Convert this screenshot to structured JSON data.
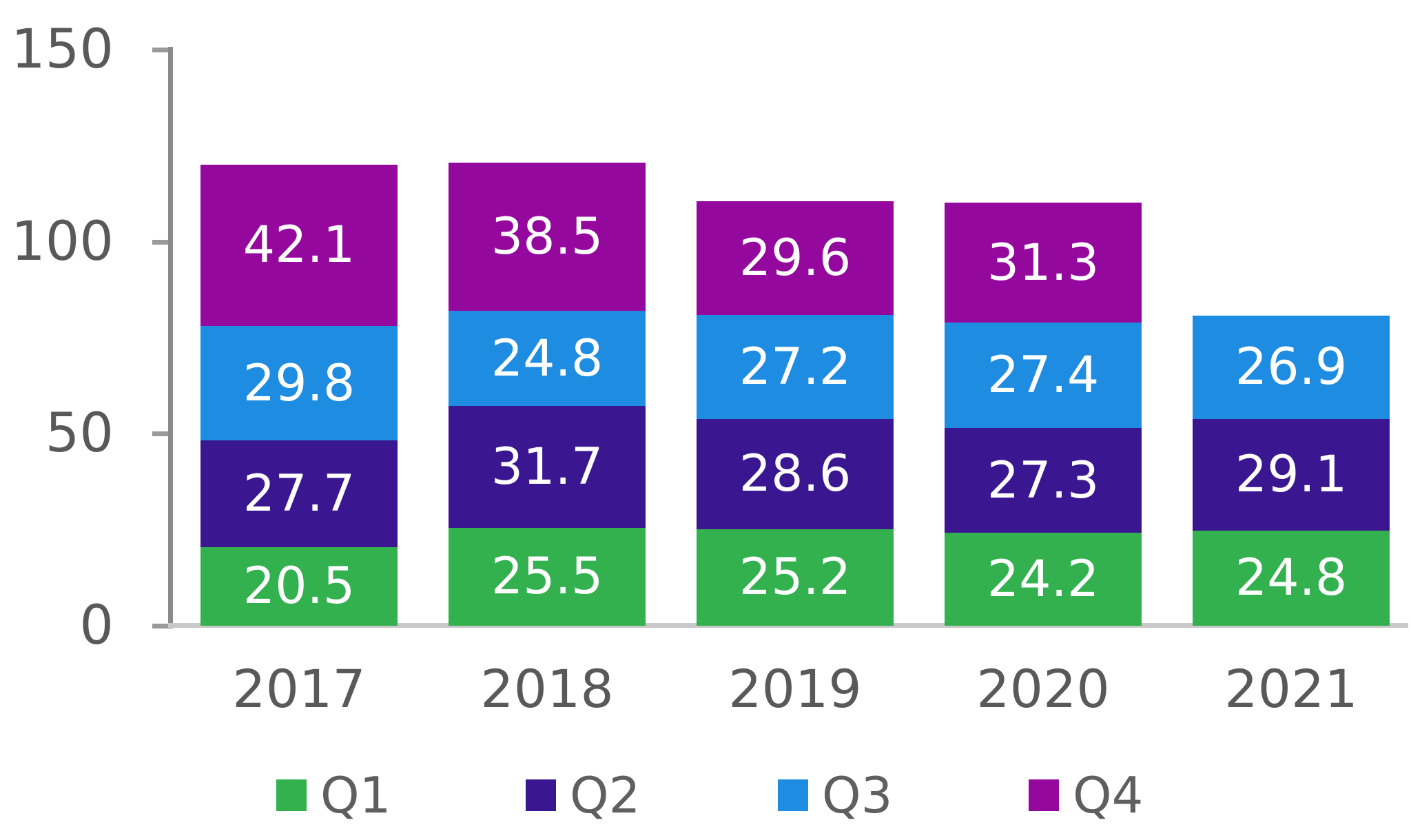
{
  "chart_data": {
    "type": "bar",
    "stacked": true,
    "title": "",
    "xlabel": "",
    "ylabel": "",
    "categories": [
      "2017",
      "2018",
      "2019",
      "2020",
      "2021"
    ],
    "series": [
      {
        "name": "Q1",
        "color": "#33b14f",
        "values": [
          20.5,
          25.5,
          25.2,
          24.2,
          24.8
        ]
      },
      {
        "name": "Q2",
        "color": "#3b1691",
        "values": [
          27.7,
          31.7,
          28.6,
          27.3,
          29.1
        ]
      },
      {
        "name": "Q3",
        "color": "#1e8ce0",
        "values": [
          29.8,
          24.8,
          27.2,
          27.4,
          26.9
        ]
      },
      {
        "name": "Q4",
        "color": "#95089e",
        "values": [
          42.1,
          38.5,
          29.6,
          31.3,
          null
        ]
      }
    ],
    "y_ticks": [
      0,
      50,
      100,
      150
    ],
    "ylim": [
      0,
      150
    ],
    "grid": false,
    "legend_position": "bottom",
    "value_labels": "inside-center, white",
    "colors": {
      "value_label": "#ffffff",
      "axis_label": "#595959",
      "legend_label": "#5f5f5f",
      "y_axis_line": "#8a8a8a",
      "tick": "#9a9a9a",
      "baseline": "#c9c9c9",
      "background": "#ffffff"
    }
  }
}
